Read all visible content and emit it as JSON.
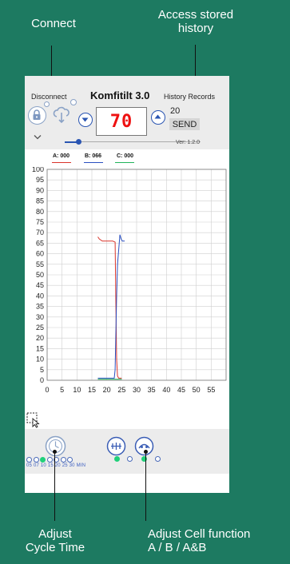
{
  "callouts": {
    "connect": "Connect",
    "access_line1": "Access stored",
    "access_line2": "history",
    "cycle_line1": "Adjust",
    "cycle_line2": "Cycle Time",
    "cell_line1": "Adjust Cell function",
    "cell_line2": "A / B / A&B"
  },
  "app": {
    "disconnect_label": "Disconnect",
    "title": "Komfitilt 3.0",
    "history_label": "History Records",
    "value_display": "70",
    "setpoint": "20",
    "send_label": "SEND",
    "version": "Ver: 1.2.0",
    "slider_fraction": 0.1
  },
  "legend": {
    "a": "A: 000",
    "b": "B: 066",
    "c": "C: 000"
  },
  "colors": {
    "background": "#1d7a61",
    "series_a": "#d9342b",
    "series_b": "#2a4fc0",
    "series_c": "#21b45a",
    "display_digits": "#e11111"
  },
  "icons": {
    "lock": "lock-icon",
    "connect": "cloud-connect-icon",
    "down": "chevron-down-icon",
    "cycle": "cycle-dial-icon",
    "cell": "cell-function-icon",
    "select": "selection-cursor-icon"
  },
  "cycle": {
    "min_label": "05 07 10 15 20 25 30 MIN",
    "selected_index": 2
  },
  "cell_function": {
    "selected_index": 0
  },
  "chart_data": {
    "type": "line",
    "title": "",
    "xlabel": "",
    "ylabel": "",
    "xlim": [
      0,
      60
    ],
    "ylim": [
      0,
      100
    ],
    "x_ticks": [
      0,
      5,
      10,
      15,
      20,
      25,
      30,
      35,
      40,
      45,
      50,
      55
    ],
    "y_ticks": [
      100,
      95,
      90,
      85,
      80,
      75,
      70,
      65,
      60,
      55,
      50,
      45,
      40,
      35,
      30,
      25,
      20,
      15,
      10,
      5,
      0
    ],
    "grid": true,
    "legend": "top",
    "series": [
      {
        "name": "A: 000",
        "color": "#d9342b",
        "x": [
          17,
          17.5,
          18.5,
          20,
          22,
          22.8,
          23,
          23.3,
          23.6,
          24,
          25
        ],
        "y": [
          68,
          67,
          66,
          66,
          66,
          65.5,
          40,
          10,
          2,
          1,
          1
        ]
      },
      {
        "name": "B: 066",
        "color": "#2a4fc0",
        "x": [
          17,
          20,
          22.5,
          22.8,
          23,
          23.3,
          23.6,
          24,
          24.4,
          24.8,
          25.2,
          26
        ],
        "y": [
          1,
          1,
          1,
          5,
          20,
          40,
          55,
          62,
          69,
          67,
          66,
          66
        ]
      },
      {
        "name": "C: 000",
        "color": "#21b45a",
        "x": [
          17,
          19,
          21,
          23,
          25
        ],
        "y": [
          0.5,
          0.5,
          0.5,
          0.5,
          0.5
        ]
      }
    ]
  }
}
